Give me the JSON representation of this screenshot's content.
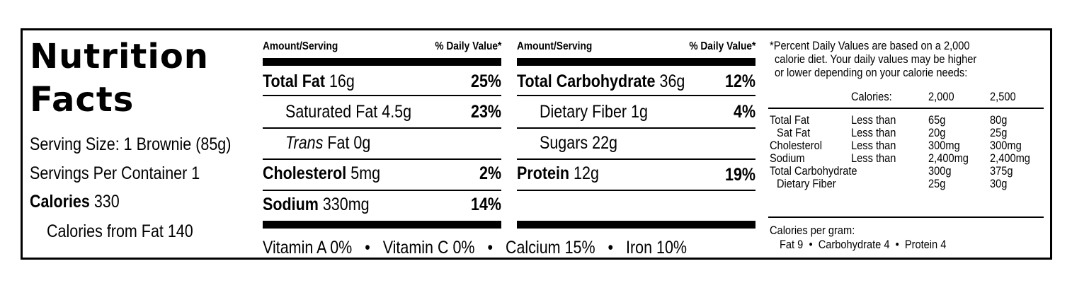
{
  "title_line1": "Nutrition",
  "title_line2": "Facts",
  "serving_size": "Serving Size: 1 Brownie (85g)",
  "servings_per_container": "Servings Per Container 1",
  "calories_label": "Calories",
  "calories_value": "330",
  "calories_from_fat": "Calories from Fat 140",
  "column_header": {
    "amount": "Amount/Serving",
    "dv": "% Daily Value*"
  },
  "left_column": [
    {
      "label": "Total Fat",
      "amount": "16g",
      "dv": "25%"
    },
    {
      "label": "Saturated Fat",
      "amount": "4.5g",
      "dv": "23%"
    },
    {
      "label": "Trans",
      "amount": "Fat 0g",
      "dv": ""
    },
    {
      "label": "Cholesterol",
      "amount": "5mg",
      "dv": "2%"
    },
    {
      "label": "Sodium",
      "amount": "330mg",
      "dv": "14%"
    }
  ],
  "right_column": [
    {
      "label": "Total Carbohydrate",
      "amount": "36g",
      "dv": "12%"
    },
    {
      "label": "Dietary Fiber",
      "amount": "1g",
      "dv": "4%"
    },
    {
      "label": "Sugars",
      "amount": "22g",
      "dv": ""
    },
    {
      "label": "Protein",
      "amount": "12g",
      "dv": "19%"
    }
  ],
  "vitamins": [
    "Vitamin A 0%",
    "Vitamin C 0%",
    "Calcium 15%",
    "Iron 10%"
  ],
  "bullet": "•",
  "footnote_lines": [
    "*Percent Daily Values are based on a 2,000",
    "calorie diet. Your daily values may be higher",
    "or lower depending on your calorie needs:"
  ],
  "dv_table": {
    "header": [
      "Calories:",
      "2,000",
      "2,500"
    ],
    "rows": [
      {
        "nutrient": "Total Fat",
        "limit": "Less than",
        "v2000": "65g",
        "v2500": "80g"
      },
      {
        "nutrient": "Sat Fat",
        "limit": "Less than",
        "v2000": "20g",
        "v2500": "25g"
      },
      {
        "nutrient": "Cholesterol",
        "limit": "Less than",
        "v2000": "300mg",
        "v2500": "300mg"
      },
      {
        "nutrient": "Sodium",
        "limit": "Less than",
        "v2000": "2,400mg",
        "v2500": "2,400mg"
      },
      {
        "nutrient": "Total Carbohydrate",
        "limit": "",
        "v2000": "300g",
        "v2500": "375g"
      },
      {
        "nutrient": "Dietary Fiber",
        "limit": "",
        "v2000": "25g",
        "v2500": "30g"
      }
    ]
  },
  "calories_per_gram_label": "Calories per gram:",
  "calories_per_gram": [
    "Fat 9",
    "Carbohydrate 4",
    "Protein 4"
  ]
}
